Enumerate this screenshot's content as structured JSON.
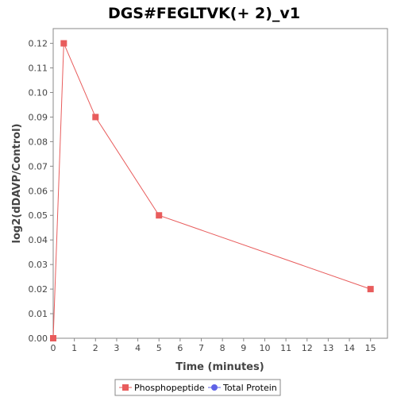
{
  "chart_data": {
    "type": "line",
    "title": "DGS#FEGLTVK(+ 2)_v1",
    "xlabel": "Time (minutes)",
    "ylabel": "log2(dDAVP/Control)",
    "xlim": [
      0,
      15.8
    ],
    "ylim": [
      0,
      0.126
    ],
    "xticks": [
      "0",
      "1",
      "2",
      "3",
      "4",
      "5",
      "6",
      "7",
      "8",
      "9",
      "10",
      "11",
      "12",
      "13",
      "14",
      "15"
    ],
    "yticks": [
      "0.00",
      "0.01",
      "0.02",
      "0.03",
      "0.04",
      "0.05",
      "0.06",
      "0.07",
      "0.08",
      "0.09",
      "0.10",
      "0.11",
      "0.12"
    ],
    "grid": false,
    "legend_position": "bottom",
    "series": [
      {
        "name": "Phosphopeptide",
        "color": "#e85c5c",
        "marker": "square",
        "x": [
          0,
          0.5,
          2,
          5,
          15
        ],
        "y": [
          0.0,
          0.12,
          0.09,
          0.05,
          0.02
        ]
      },
      {
        "name": "Total Protein",
        "color": "#5f62e6",
        "marker": "circle",
        "x": [],
        "y": []
      }
    ]
  }
}
